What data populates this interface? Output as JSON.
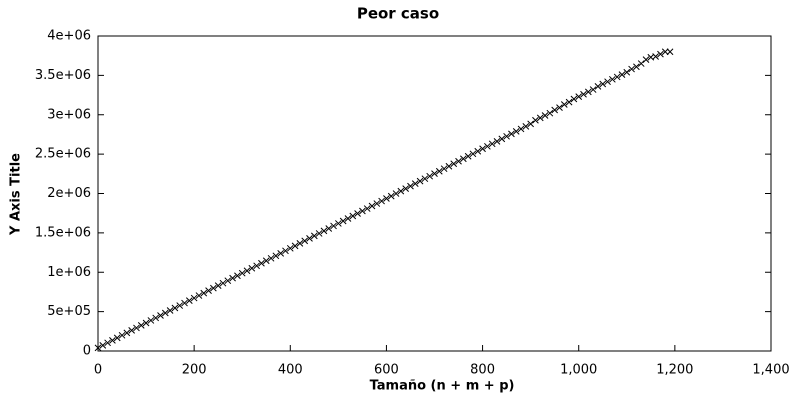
{
  "chart_data": {
    "type": "scatter",
    "title": "Peor caso",
    "x_label": "Tamaño (n + m + p)",
    "y_label": "Y Axis Title",
    "marker": "x",
    "color": "#000000",
    "x": [
      0,
      10,
      20,
      30,
      40,
      50,
      60,
      70,
      80,
      90,
      100,
      110,
      120,
      130,
      140,
      150,
      160,
      170,
      180,
      190,
      200,
      210,
      220,
      230,
      240,
      250,
      260,
      270,
      280,
      290,
      300,
      310,
      320,
      330,
      340,
      350,
      360,
      370,
      380,
      390,
      400,
      410,
      420,
      430,
      440,
      450,
      460,
      470,
      480,
      490,
      500,
      510,
      520,
      530,
      540,
      550,
      560,
      570,
      580,
      590,
      600,
      610,
      620,
      630,
      640,
      650,
      660,
      670,
      680,
      690,
      700,
      710,
      720,
      730,
      740,
      750,
      760,
      770,
      780,
      790,
      800,
      810,
      820,
      830,
      840,
      850,
      860,
      870,
      880,
      890,
      900,
      910,
      920,
      930,
      940,
      950,
      960,
      970,
      980,
      990,
      1000,
      1010,
      1020,
      1030,
      1040,
      1050,
      1060,
      1070,
      1080,
      1090,
      1100,
      1110,
      1120,
      1130,
      1140,
      1150,
      1160,
      1170,
      1180,
      1190
    ],
    "values": [
      40000,
      71000,
      104000,
      135000,
      167000,
      199000,
      230000,
      262000,
      293000,
      325000,
      356000,
      388000,
      420000,
      451000,
      483000,
      514000,
      546000,
      577000,
      609000,
      640000,
      672000,
      704000,
      735000,
      767000,
      798000,
      830000,
      861000,
      893000,
      925000,
      956000,
      988000,
      1019000,
      1051000,
      1082000,
      1114000,
      1146000,
      1177000,
      1209000,
      1240000,
      1272000,
      1304000,
      1335000,
      1367000,
      1398000,
      1430000,
      1462000,
      1493000,
      1525000,
      1556000,
      1588000,
      1620000,
      1651000,
      1683000,
      1714000,
      1746000,
      1778000,
      1809000,
      1841000,
      1872000,
      1904000,
      1936000,
      1967000,
      1999000,
      2030000,
      2062000,
      2094000,
      2125000,
      2157000,
      2188000,
      2220000,
      2252000,
      2283000,
      2315000,
      2346000,
      2378000,
      2410000,
      2441000,
      2473000,
      2504000,
      2536000,
      2568000,
      2599000,
      2631000,
      2662000,
      2694000,
      2726000,
      2757000,
      2789000,
      2820000,
      2852000,
      2884000,
      2930000,
      2960000,
      2990000,
      3020000,
      3060000,
      3090000,
      3130000,
      3160000,
      3200000,
      3230000,
      3260000,
      3290000,
      3320000,
      3360000,
      3390000,
      3420000,
      3450000,
      3480000,
      3510000,
      3540000,
      3580000,
      3610000,
      3650000,
      3700000,
      3730000,
      3740000,
      3770000,
      3800000,
      3800000
    ],
    "xlim": [
      0,
      1400
    ],
    "xticks": [
      0,
      200,
      400,
      600,
      800,
      {
        "value": 1000,
        "label": "1,000"
      },
      {
        "value": 1200,
        "label": "1,200"
      },
      {
        "value": 1400,
        "label": "1,400"
      }
    ],
    "ylim": [
      0,
      4000000
    ],
    "yticks": [
      0,
      {
        "value": 500000,
        "label": "5e+05"
      },
      {
        "value": 1000000,
        "label": "1e+06"
      },
      {
        "value": 1500000,
        "label": "1.5e+06"
      },
      {
        "value": 2000000,
        "label": "2e+06"
      },
      {
        "value": 2500000,
        "label": "2.5e+06"
      },
      {
        "value": 3000000,
        "label": "3e+06"
      },
      {
        "value": 3500000,
        "label": "3.5e+06"
      },
      {
        "value": 4000000,
        "label": "4e+06"
      }
    ]
  }
}
